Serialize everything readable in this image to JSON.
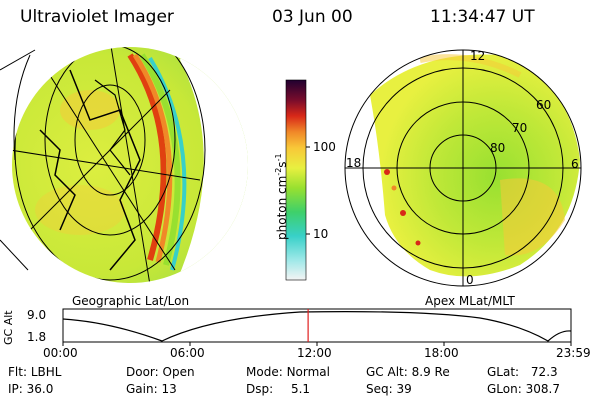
{
  "header": {
    "instrument": "Ultraviolet Imager",
    "date": "03 Jun 00",
    "time": "11:34:47 UT"
  },
  "panels": {
    "left_label": "Geographic Lat/Lon",
    "right_label": "Apex MLat/MLT"
  },
  "polar_labels": {
    "top": "12",
    "left": "18",
    "right": "6",
    "bottom": "0",
    "lat60": "60",
    "lat70": "70",
    "lat80": "80"
  },
  "colorbar": {
    "title": "photon cm",
    "exp1": "-2",
    "mid": "s",
    "exp2": "-1",
    "tick100": "100",
    "tick10": "10",
    "colors": [
      "#f4f4f4",
      "#9ee8e8",
      "#38d0c8",
      "#3ed06a",
      "#98e030",
      "#e8f040",
      "#f8c838",
      "#f08828",
      "#d82818",
      "#780c2c",
      "#200030"
    ]
  },
  "altitude_plot": {
    "ylabel": "GC Alt",
    "ymax": "9.0",
    "ymin": "1.8",
    "xticks": [
      "00:00",
      "06:00",
      "12:00",
      "18:00",
      "23:59"
    ],
    "current_time_hours": 11.58,
    "marker_color": "#e02020"
  },
  "info": {
    "flt_label": "Flt:",
    "flt_value": "LBHL",
    "ip_label": "IP:",
    "ip_value": "36.0",
    "door_label": "Door:",
    "door_value": "Open",
    "gain_label": "Gain:",
    "gain_value": "13",
    "mode_label": "Mode:",
    "mode_value": "Normal",
    "dsp_label": "Dsp:",
    "dsp_value": "5.1",
    "gcalt_label": "GC Alt:",
    "gcalt_value": "8.9 Re",
    "seq_label": "Seq:",
    "seq_value": "39",
    "glat_label": "GLat:",
    "glat_value": "72.3",
    "glon_label": "GLon:",
    "glon_value": "308.7"
  }
}
